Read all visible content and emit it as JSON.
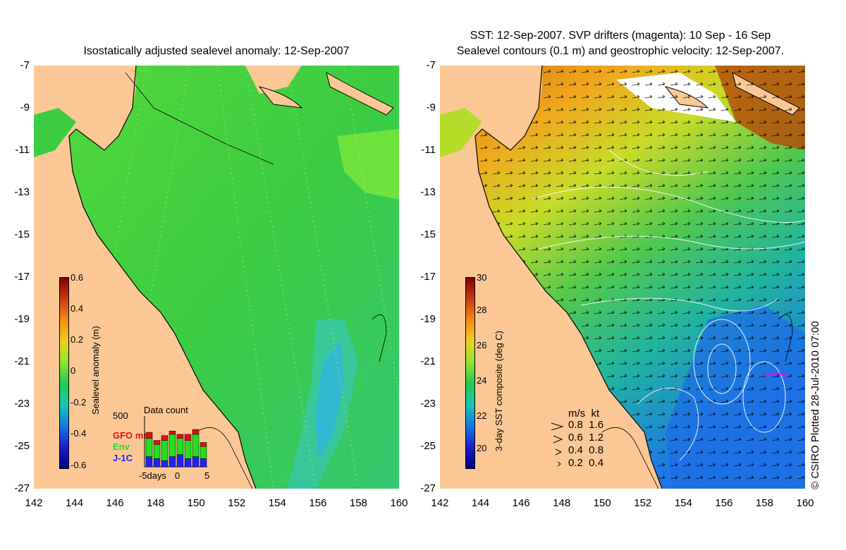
{
  "left_panel": {
    "title": "Isostatically adjusted sealevel anomaly: 12-Sep-2007",
    "colorbar": {
      "label": "Sealevel anomaly (m)",
      "ticks": [
        "0.6",
        "0.4",
        "0.2",
        "0",
        "-0.2",
        "-0.4",
        "-0.6"
      ]
    },
    "data_count": {
      "title": "Data count",
      "max_label": "500",
      "x_labels": [
        "-5days",
        "0",
        "5"
      ],
      "satellites": [
        {
          "name": "GFO mm",
          "color": "#e01010"
        },
        {
          "name": "Env",
          "color": "#20e020"
        },
        {
          "name": "J-1C",
          "color": "#2020ff"
        }
      ],
      "bars": [
        {
          "gfo": 0.15,
          "env": 0.45,
          "j1": 0.25
        },
        {
          "gfo": 0.1,
          "env": 0.35,
          "j1": 0.2
        },
        {
          "gfo": 0.12,
          "env": 0.5,
          "j1": 0.15
        },
        {
          "gfo": 0.08,
          "env": 0.55,
          "j1": 0.25
        },
        {
          "gfo": 0.1,
          "env": 0.4,
          "j1": 0.3
        },
        {
          "gfo": 0.15,
          "env": 0.45,
          "j1": 0.2
        },
        {
          "gfo": 0.12,
          "env": 0.55,
          "j1": 0.25
        },
        {
          "gfo": 0.1,
          "env": 0.3,
          "j1": 0.2
        }
      ]
    }
  },
  "right_panel": {
    "title_line1": "SST: 12-Sep-2007. SVP drifters (magenta): 10 Sep - 16 Sep",
    "title_line2": "Sealevel contours (0.1 m) and geostrophic velocity: 12-Sep-2007.",
    "colorbar": {
      "label": "3-day SST composite (deg C)",
      "ticks": [
        "30",
        "28",
        "26",
        "24",
        "22",
        "20"
      ]
    },
    "velocity_legend": {
      "header": "m/s  kt",
      "rows": [
        "0.8  1.6",
        "0.6  1.2",
        "0.4  0.8",
        "0.2  0.4"
      ]
    },
    "copyright": "© CSIRO Plotted 28-Jul-2010 07:00"
  },
  "axes": {
    "lat_ticks": [
      "-7",
      "-9",
      "-11",
      "-13",
      "-15",
      "-17",
      "-19",
      "-21",
      "-23",
      "-25",
      "-27"
    ],
    "lon_ticks": [
      "142",
      "144",
      "146",
      "148",
      "150",
      "152",
      "154",
      "156",
      "158",
      "160"
    ],
    "lat_range": [
      -27,
      -7
    ],
    "lon_range": [
      142,
      160
    ]
  },
  "colors": {
    "land": "#fbc895",
    "sla_base": "#3dcc3d",
    "sst_warm": "#c86414",
    "sst_cool": "#1e78e6"
  }
}
